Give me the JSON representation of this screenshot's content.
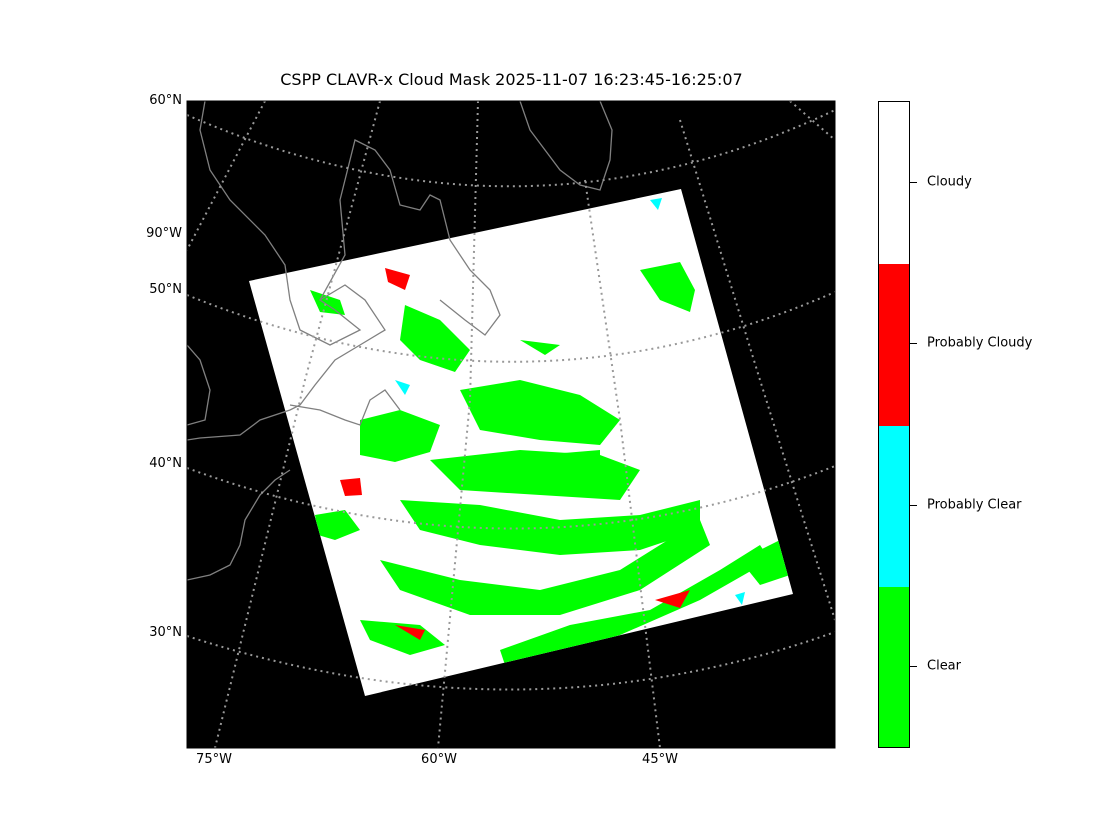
{
  "title": "CSPP CLAVR-x Cloud Mask 2025-11-07 16:23:45-16:25:07",
  "map": {
    "lat_labels": [
      "60°N",
      "90°W",
      "50°N",
      "40°N",
      "30°N"
    ],
    "lon_labels": [
      "75°W",
      "60°W",
      "45°W"
    ],
    "background_color": "#000000",
    "gridline_color": "#999999",
    "coastline_color": "#808080"
  },
  "colorbar": {
    "categories": [
      {
        "label": "Cloudy",
        "color": "#ffffff"
      },
      {
        "label": "Probably Cloudy",
        "color": "#ff0000"
      },
      {
        "label": "Probably Clear",
        "color": "#00ffff"
      },
      {
        "label": "Clear",
        "color": "#00ff00"
      }
    ]
  }
}
